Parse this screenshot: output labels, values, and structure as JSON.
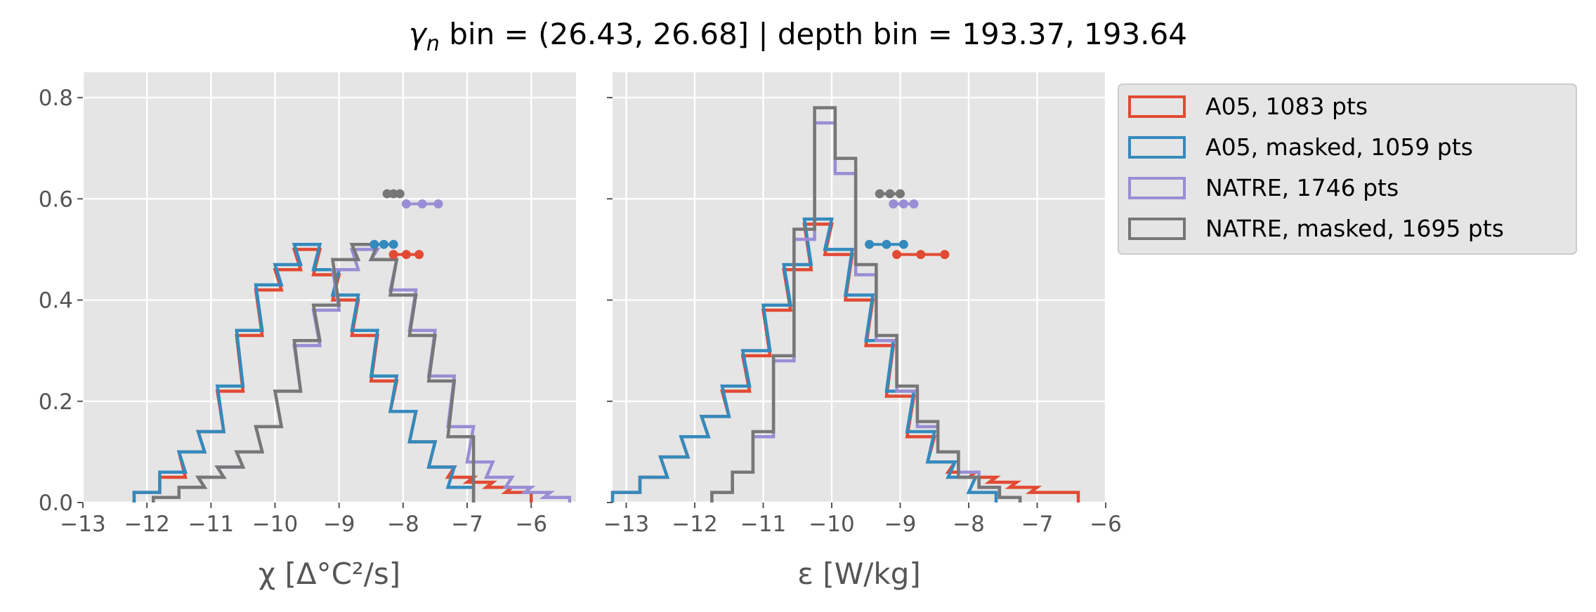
{
  "title": {
    "prefix_symbol": "γ",
    "prefix_sub": "n",
    "rest": " bin = (26.43, 26.68] | depth bin = 193.37, 193.64"
  },
  "colors": {
    "a05": "#e24a33",
    "a05_masked": "#348abd",
    "natre": "#988ed5",
    "natre_masked": "#777777",
    "axes_bg": "#e5e5e5",
    "grid": "#ffffff",
    "tick": "#555555"
  },
  "legend": {
    "position": "outside-right",
    "entries": [
      {
        "label": "A05, 1083 pts",
        "color_key": "a05"
      },
      {
        "label": "A05, masked,  1059 pts",
        "color_key": "a05_masked"
      },
      {
        "label": "NATRE, 1746 pts",
        "color_key": "natre"
      },
      {
        "label": "NATRE, masked,  1695 pts",
        "color_key": "natre_masked"
      }
    ]
  },
  "chart_data": [
    {
      "type": "histogram",
      "xlabel": "χ [Δ°C²/s]",
      "xlim": [
        -13,
        -5.3
      ],
      "ylim": [
        0,
        0.85
      ],
      "xticks": [
        -13,
        -12,
        -11,
        -10,
        -9,
        -8,
        -7,
        -6
      ],
      "xtick_labels": [
        "−13",
        "−12",
        "−11",
        "−10",
        "−9",
        "−8",
        "−7",
        "−6"
      ],
      "yticks": [
        0,
        0.2,
        0.4,
        0.6,
        0.8
      ],
      "ytick_labels": [
        "0.0",
        "0.2",
        "0.4",
        "0.6",
        "0.8"
      ],
      "grid": true,
      "series": [
        {
          "name": "A05, 1083 pts",
          "color_key": "a05",
          "x": [
            -12.0,
            -11.6,
            -11.3,
            -11.0,
            -10.7,
            -10.4,
            -10.1,
            -9.8,
            -9.5,
            -9.2,
            -8.9,
            -8.6,
            -8.3,
            -8.0,
            -7.7,
            -7.4,
            -7.1,
            -6.8,
            -6.5,
            -6.2
          ],
          "y": [
            0.02,
            0.05,
            0.1,
            0.14,
            0.22,
            0.33,
            0.42,
            0.46,
            0.5,
            0.45,
            0.4,
            0.33,
            0.24,
            0.18,
            0.12,
            0.07,
            0.05,
            0.04,
            0.03,
            0.02
          ]
        },
        {
          "name": "A05, masked,  1059 pts",
          "color_key": "a05_masked",
          "x": [
            -12.0,
            -11.6,
            -11.3,
            -11.0,
            -10.7,
            -10.4,
            -10.1,
            -9.8,
            -9.5,
            -9.2,
            -8.9,
            -8.6,
            -8.3,
            -8.0,
            -7.7,
            -7.4,
            -7.1
          ],
          "y": [
            0.02,
            0.06,
            0.1,
            0.14,
            0.23,
            0.34,
            0.43,
            0.47,
            0.51,
            0.46,
            0.41,
            0.34,
            0.25,
            0.18,
            0.12,
            0.07,
            0.03
          ]
        },
        {
          "name": "NATRE, 1746 pts",
          "color_key": "natre",
          "x": [
            -11.7,
            -11.3,
            -11.0,
            -10.7,
            -10.4,
            -10.1,
            -9.8,
            -9.5,
            -9.2,
            -8.9,
            -8.6,
            -8.3,
            -8.0,
            -7.7,
            -7.4,
            -7.1,
            -6.8,
            -6.5,
            -6.2,
            -5.9,
            -5.6
          ],
          "y": [
            0.01,
            0.03,
            0.05,
            0.07,
            0.1,
            0.15,
            0.22,
            0.31,
            0.38,
            0.46,
            0.5,
            0.48,
            0.42,
            0.34,
            0.25,
            0.15,
            0.08,
            0.05,
            0.03,
            0.02,
            0.01
          ]
        },
        {
          "name": "NATRE, masked,  1695 pts",
          "color_key": "natre_masked",
          "x": [
            -11.7,
            -11.3,
            -11.0,
            -10.7,
            -10.4,
            -10.1,
            -9.8,
            -9.5,
            -9.2,
            -8.9,
            -8.6,
            -8.3,
            -8.0,
            -7.7,
            -7.4,
            -7.1
          ],
          "y": [
            0.01,
            0.03,
            0.05,
            0.07,
            0.1,
            0.15,
            0.22,
            0.32,
            0.39,
            0.48,
            0.51,
            0.48,
            0.41,
            0.33,
            0.24,
            0.13
          ]
        }
      ],
      "quantile_markers": [
        {
          "color_key": "natre_masked",
          "y": 0.61,
          "x": [
            -8.25,
            -8.15,
            -8.05
          ]
        },
        {
          "color_key": "natre",
          "y": 0.59,
          "x": [
            -7.95,
            -7.7,
            -7.45
          ]
        },
        {
          "color_key": "a05_masked",
          "y": 0.51,
          "x": [
            -8.45,
            -8.3,
            -8.15
          ]
        },
        {
          "color_key": "a05",
          "y": 0.49,
          "x": [
            -8.15,
            -7.95,
            -7.75
          ]
        }
      ]
    },
    {
      "type": "histogram",
      "xlabel": "ε [W/kg]",
      "xlim": [
        -13.2,
        -6.0
      ],
      "ylim": [
        0,
        0.85
      ],
      "xticks": [
        -13,
        -12,
        -11,
        -10,
        -9,
        -8,
        -7,
        -6
      ],
      "xtick_labels": [
        "−13",
        "−12",
        "−11",
        "−10",
        "−9",
        "−8",
        "−7",
        "−6"
      ],
      "yticks": [
        0,
        0.2,
        0.4,
        0.6,
        0.8
      ],
      "ytick_labels": [
        "",
        "",
        "",
        "",
        ""
      ],
      "grid": true,
      "series": [
        {
          "name": "A05, 1083 pts",
          "color_key": "a05",
          "x": [
            -13.0,
            -12.6,
            -12.3,
            -12.0,
            -11.7,
            -11.4,
            -11.1,
            -10.8,
            -10.5,
            -10.2,
            -9.9,
            -9.6,
            -9.3,
            -9.0,
            -8.7,
            -8.4,
            -8.1,
            -7.8,
            -7.5,
            -7.2,
            -6.9,
            -6.6
          ],
          "y": [
            0.02,
            0.05,
            0.09,
            0.13,
            0.17,
            0.22,
            0.29,
            0.38,
            0.46,
            0.55,
            0.49,
            0.4,
            0.31,
            0.21,
            0.13,
            0.08,
            0.06,
            0.05,
            0.04,
            0.03,
            0.02,
            0.02
          ]
        },
        {
          "name": "A05, masked,  1059 pts",
          "color_key": "a05_masked",
          "x": [
            -13.0,
            -12.6,
            -12.3,
            -12.0,
            -11.7,
            -11.4,
            -11.1,
            -10.8,
            -10.5,
            -10.2,
            -9.9,
            -9.6,
            -9.3,
            -9.0,
            -8.7,
            -8.4,
            -8.1,
            -7.8
          ],
          "y": [
            0.02,
            0.05,
            0.09,
            0.13,
            0.17,
            0.23,
            0.3,
            0.39,
            0.47,
            0.56,
            0.5,
            0.41,
            0.32,
            0.22,
            0.14,
            0.08,
            0.05,
            0.02
          ]
        },
        {
          "name": "NATRE, 1746 pts",
          "color_key": "natre",
          "x": [
            -11.6,
            -11.3,
            -11.0,
            -10.7,
            -10.4,
            -10.1,
            -9.8,
            -9.5,
            -9.2,
            -8.9,
            -8.6,
            -8.3,
            -8.0,
            -7.7,
            -7.4
          ],
          "y": [
            0.02,
            0.06,
            0.13,
            0.28,
            0.52,
            0.75,
            0.65,
            0.45,
            0.32,
            0.22,
            0.15,
            0.1,
            0.06,
            0.03,
            0.01
          ]
        },
        {
          "name": "NATRE, masked,  1695 pts",
          "color_key": "natre_masked",
          "x": [
            -11.6,
            -11.3,
            -11.0,
            -10.7,
            -10.4,
            -10.1,
            -9.8,
            -9.5,
            -9.2,
            -8.9,
            -8.6,
            -8.3,
            -8.0,
            -7.7,
            -7.4
          ],
          "y": [
            0.02,
            0.06,
            0.14,
            0.29,
            0.54,
            0.78,
            0.68,
            0.47,
            0.33,
            0.23,
            0.16,
            0.1,
            0.05,
            0.03,
            0.01
          ]
        }
      ],
      "quantile_markers": [
        {
          "color_key": "natre_masked",
          "y": 0.61,
          "x": [
            -9.3,
            -9.15,
            -9.0
          ]
        },
        {
          "color_key": "natre",
          "y": 0.59,
          "x": [
            -9.1,
            -8.95,
            -8.8
          ]
        },
        {
          "color_key": "a05_masked",
          "y": 0.51,
          "x": [
            -9.45,
            -9.2,
            -8.95
          ]
        },
        {
          "color_key": "a05",
          "y": 0.49,
          "x": [
            -9.05,
            -8.7,
            -8.35
          ]
        }
      ]
    }
  ]
}
